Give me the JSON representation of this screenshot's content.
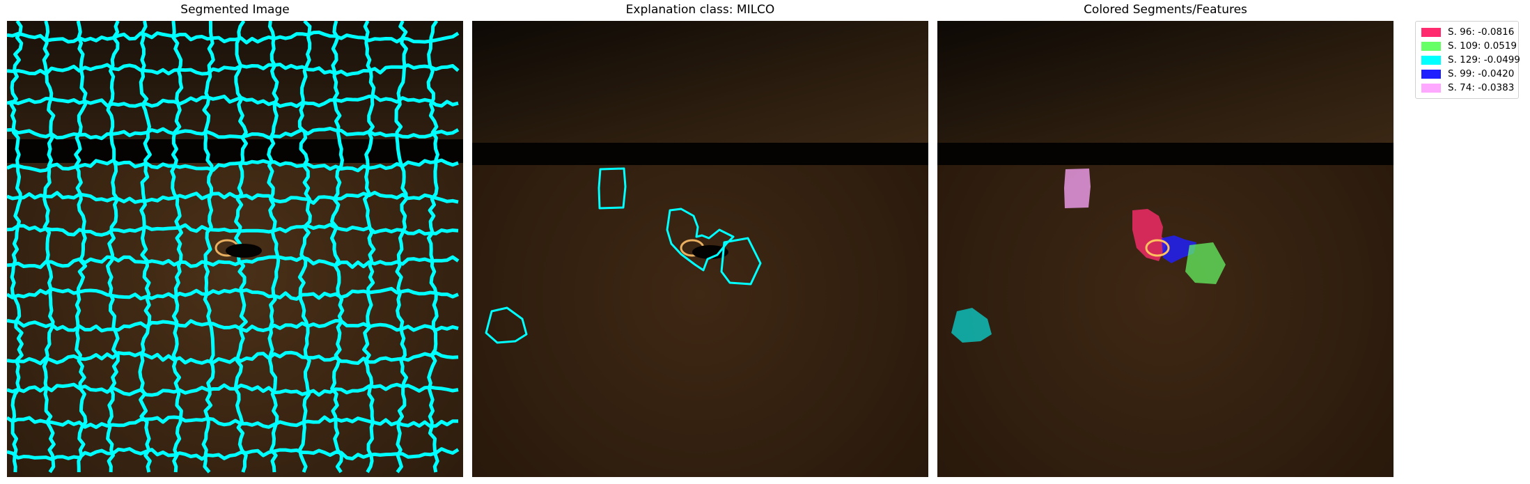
{
  "panels": [
    {
      "title": "Segmented Image"
    },
    {
      "title": "Explanation class: MILCO"
    },
    {
      "title": "Colored Segments/Features"
    }
  ],
  "colors": {
    "boundary": "#00ffff",
    "seabed": "#3a2614",
    "shadow": "#050301"
  },
  "legend": [
    {
      "label": "S. 96: -0.0816",
      "color": "#ff2b6e"
    },
    {
      "label": "S. 109: 0.0519",
      "color": "#66ff66"
    },
    {
      "label": "S. 129: -0.0499",
      "color": "#00ffff"
    },
    {
      "label": "S. 99: -0.0420",
      "color": "#2020ff"
    },
    {
      "label": "S. 74: -0.0383",
      "color": "#ffa8ff"
    }
  ]
}
